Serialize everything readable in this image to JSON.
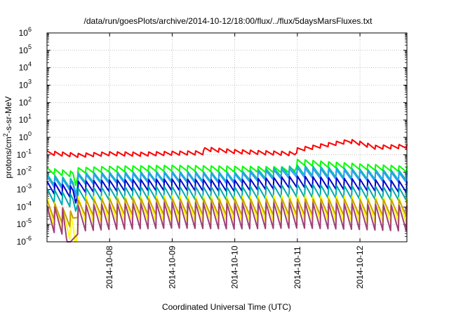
{
  "chart_data": {
    "type": "line",
    "title": "/data/run/goesPlots/archive/2014-10-12/18:00/flux/../flux/5daysMarsFluxes.txt",
    "xlabel": "Coordinated Universal Time (UTC)",
    "ylabel": "protons/cm²-s-sr-MeV",
    "y_scale": "log",
    "ylim": [
      1e-06,
      1000000.0
    ],
    "y_ticks": [
      {
        "value": 1e-06,
        "base": "10",
        "exp": "-6"
      },
      {
        "value": 1e-05,
        "base": "10",
        "exp": "-5"
      },
      {
        "value": 0.0001,
        "base": "10",
        "exp": "-4"
      },
      {
        "value": 0.001,
        "base": "10",
        "exp": "-3"
      },
      {
        "value": 0.01,
        "base": "10",
        "exp": "-2"
      },
      {
        "value": 0.1,
        "base": "10",
        "exp": "-1"
      },
      {
        "value": 1,
        "base": "10",
        "exp": "0"
      },
      {
        "value": 10,
        "base": "10",
        "exp": "1"
      },
      {
        "value": 100,
        "base": "10",
        "exp": "2"
      },
      {
        "value": 1000,
        "base": "10",
        "exp": "3"
      },
      {
        "value": 10000,
        "base": "10",
        "exp": "4"
      },
      {
        "value": 100000,
        "base": "10",
        "exp": "5"
      },
      {
        "value": 1000000,
        "base": "10",
        "exp": "6"
      }
    ],
    "xlim": [
      "2014-10-07 00:00",
      "2014-10-12 18:00"
    ],
    "x_ticks": [
      "2014-10-08",
      "2014-10-09",
      "2014-10-10",
      "2014-10-11",
      "2014-10-12"
    ],
    "grid": true,
    "sawtooth_period_hours": 3,
    "series": [
      {
        "color": "#ff0000",
        "values": [
          [
            "2014-10-07 00:00",
            0.17
          ],
          [
            "2014-10-07 12:00",
            0.12
          ],
          [
            "2014-10-08 00:00",
            0.15
          ],
          [
            "2014-10-08 12:00",
            0.14
          ],
          [
            "2014-10-09 00:00",
            0.16
          ],
          [
            "2014-10-09 12:00",
            0.17
          ],
          [
            "2014-10-09 12:30",
            0.28
          ],
          [
            "2014-10-10 00:00",
            0.2
          ],
          [
            "2014-10-10 12:00",
            0.17
          ],
          [
            "2014-10-10 23:00",
            0.15
          ],
          [
            "2014-10-11 00:00",
            0.25
          ],
          [
            "2014-10-11 12:00",
            0.5
          ],
          [
            "2014-10-11 20:00",
            0.8
          ],
          [
            "2014-10-12 00:00",
            0.6
          ],
          [
            "2014-10-12 06:00",
            0.35
          ],
          [
            "2014-10-12 18:00",
            0.4
          ]
        ]
      },
      {
        "color": "#00ff00",
        "values": [
          [
            "2014-10-07 00:00",
            0.018
          ],
          [
            "2014-10-07 10:00",
            0.011
          ],
          [
            "2014-10-07 11:00",
            0.003
          ],
          [
            "2014-10-07 12:00",
            0.018
          ],
          [
            "2014-10-08 00:00",
            0.022
          ],
          [
            "2014-10-09 00:00",
            0.025
          ],
          [
            "2014-10-10 00:00",
            0.022
          ],
          [
            "2014-10-10 23:00",
            0.02
          ],
          [
            "2014-10-11 00:00",
            0.055
          ],
          [
            "2014-10-11 12:00",
            0.04
          ],
          [
            "2014-10-12 00:00",
            0.03
          ],
          [
            "2014-10-12 18:00",
            0.022
          ]
        ]
      },
      {
        "color": "#00c4a0",
        "values": [
          [
            "2014-10-07 00:00",
            0.008
          ],
          [
            "2014-10-07 10:00",
            0.004
          ],
          [
            "2014-10-07 11:00",
            0.0015
          ],
          [
            "2014-10-07 12:00",
            0.009
          ],
          [
            "2014-10-08 00:00",
            0.01
          ],
          [
            "2014-10-09 00:00",
            0.011
          ],
          [
            "2014-10-10 00:00",
            0.01
          ],
          [
            "2014-10-11 00:00",
            0.025
          ],
          [
            "2014-10-12 00:00",
            0.015
          ],
          [
            "2014-10-12 18:00",
            0.012
          ]
        ]
      },
      {
        "color": "#3399ff",
        "values": [
          [
            "2014-10-07 00:00",
            0.006
          ],
          [
            "2014-10-07 10:00",
            0.003
          ],
          [
            "2014-10-07 11:00",
            0.001
          ],
          [
            "2014-10-07 12:00",
            0.007
          ],
          [
            "2014-10-08 00:00",
            0.008
          ],
          [
            "2014-10-09 00:00",
            0.009
          ],
          [
            "2014-10-10 00:00",
            0.008
          ],
          [
            "2014-10-11 00:00",
            0.018
          ],
          [
            "2014-10-12 00:00",
            0.012
          ],
          [
            "2014-10-12 18:00",
            0.009
          ]
        ]
      },
      {
        "color": "#0000cc",
        "values": [
          [
            "2014-10-07 00:00",
            0.003
          ],
          [
            "2014-10-07 10:00",
            0.0015
          ],
          [
            "2014-10-07 11:00",
            0.0005
          ],
          [
            "2014-10-07 12:00",
            0.003
          ],
          [
            "2014-10-08 00:00",
            0.0035
          ],
          [
            "2014-10-09 00:00",
            0.004
          ],
          [
            "2014-10-10 00:00",
            0.0035
          ],
          [
            "2014-10-11 00:00",
            0.006
          ],
          [
            "2014-10-12 00:00",
            0.004
          ],
          [
            "2014-10-12 18:00",
            0.003
          ]
        ]
      },
      {
        "color": "#00aaaa",
        "values": [
          [
            "2014-10-07 00:00",
            0.0012
          ],
          [
            "2014-10-07 10:00",
            0.0005
          ],
          [
            "2014-10-07 11:00",
            0.0002
          ],
          [
            "2014-10-07 12:00",
            0.0012
          ],
          [
            "2014-10-08 00:00",
            0.0014
          ],
          [
            "2014-10-09 00:00",
            0.0015
          ],
          [
            "2014-10-10 00:00",
            0.0014
          ],
          [
            "2014-10-11 00:00",
            0.002
          ],
          [
            "2014-10-12 00:00",
            0.0016
          ],
          [
            "2014-10-12 18:00",
            0.0013
          ]
        ]
      },
      {
        "color": "#ffff00",
        "values": [
          [
            "2014-10-07 00:00",
            0.0004
          ],
          [
            "2014-10-07 10:00",
            3e-05
          ],
          [
            "2014-10-07 11:00",
            5e-06
          ],
          [
            "2014-10-07 12:00",
            0.0004
          ],
          [
            "2014-10-08 00:00",
            0.0004
          ],
          [
            "2014-10-09 00:00",
            0.00045
          ],
          [
            "2014-10-10 00:00",
            0.0004
          ],
          [
            "2014-10-11 00:00",
            0.0005
          ],
          [
            "2014-10-12 00:00",
            0.0004
          ],
          [
            "2014-10-12 18:00",
            0.00035
          ]
        ]
      },
      {
        "color": "#c8a000",
        "values": [
          [
            "2014-10-07 00:00",
            0.00025
          ],
          [
            "2014-10-07 10:00",
            5e-05
          ],
          [
            "2014-10-07 12:00",
            0.00025
          ],
          [
            "2014-10-08 00:00",
            0.0003
          ],
          [
            "2014-10-09 00:00",
            0.0003
          ],
          [
            "2014-10-10 00:00",
            0.00028
          ],
          [
            "2014-10-11 00:00",
            0.0003
          ],
          [
            "2014-10-12 00:00",
            0.00028
          ],
          [
            "2014-10-12 18:00",
            0.00025
          ]
        ]
      },
      {
        "color": "#a0407a",
        "values": [
          [
            "2014-10-07 00:00",
            0.00012
          ],
          [
            "2014-10-07 06:00",
            8e-05
          ],
          [
            "2014-10-07 09:00",
            1e-06
          ],
          [
            "2014-10-07 12:00",
            0.00012
          ],
          [
            "2014-10-08 00:00",
            0.00015
          ],
          [
            "2014-10-09 00:00",
            0.00018
          ],
          [
            "2014-10-10 00:00",
            0.00016
          ],
          [
            "2014-10-11 00:00",
            0.00018
          ],
          [
            "2014-10-12 00:00",
            0.00015
          ],
          [
            "2014-10-12 18:00",
            0.00012
          ]
        ]
      }
    ]
  }
}
